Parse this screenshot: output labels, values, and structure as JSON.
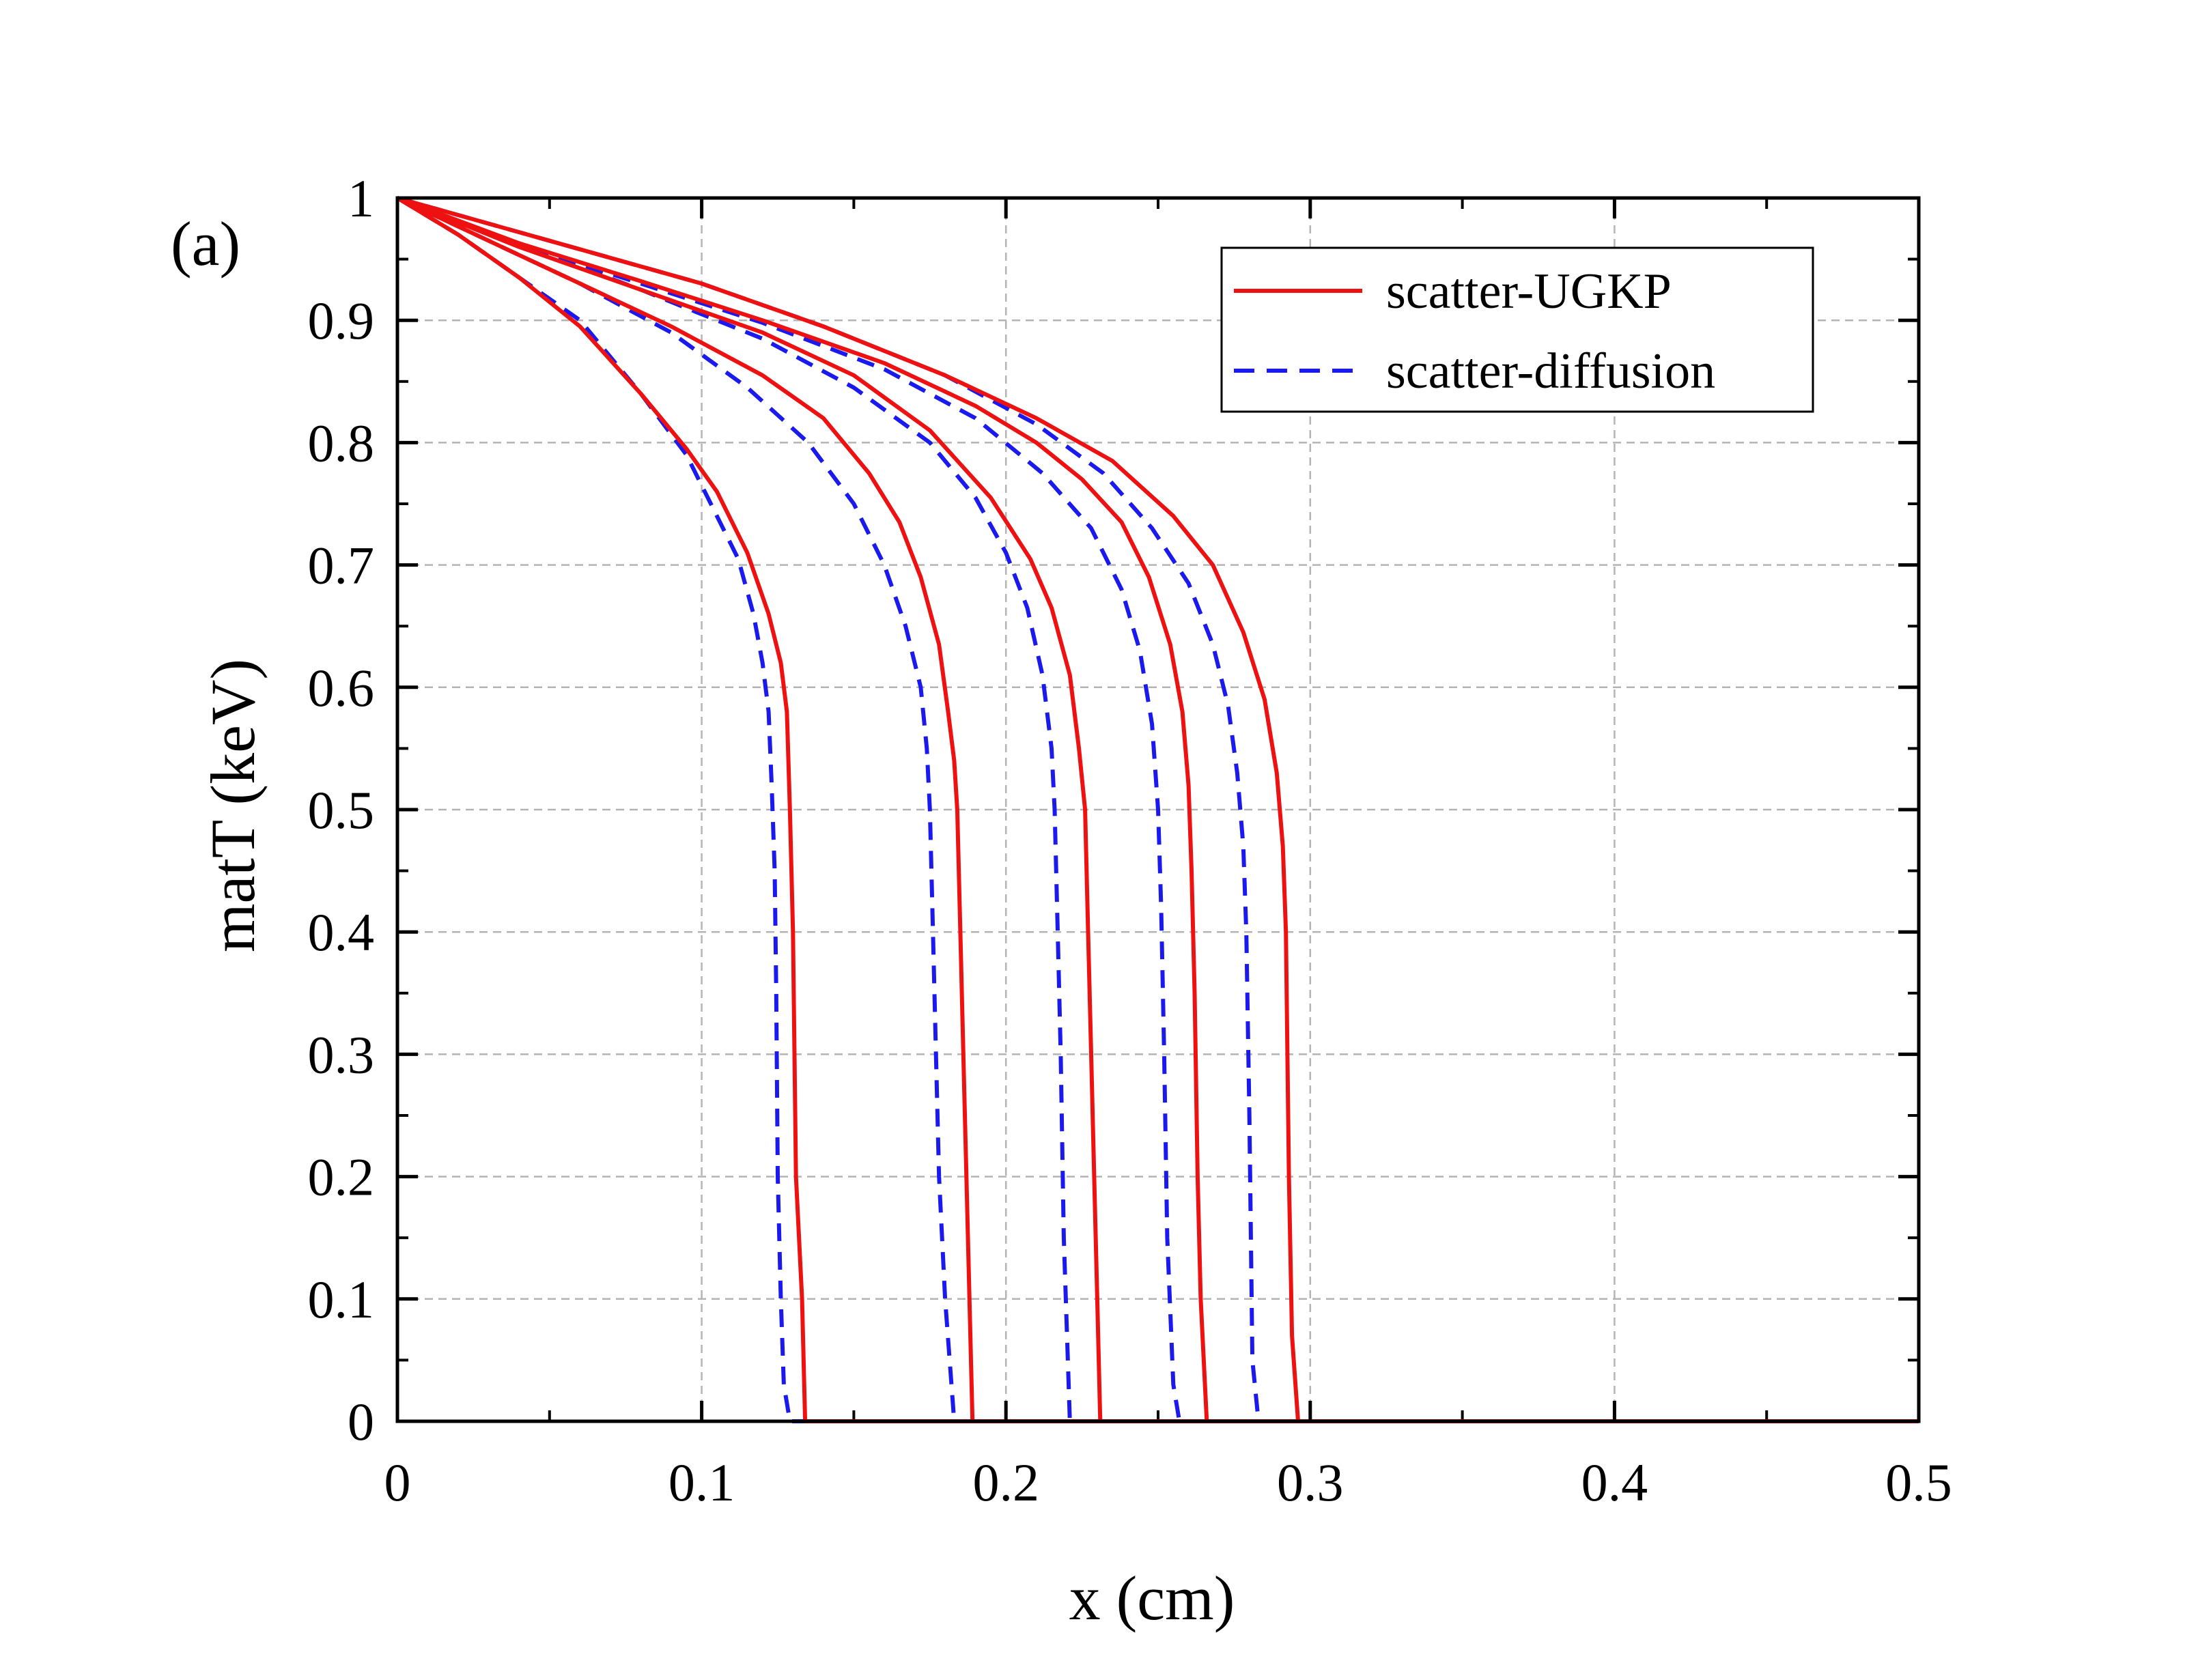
{
  "chart_data": {
    "type": "line",
    "panel_label": "(a)",
    "xlabel": "x (cm)",
    "ylabel": "matT (keV)",
    "xlim": [
      0,
      0.5
    ],
    "ylim": [
      0,
      1
    ],
    "x_ticks": [
      0,
      0.1,
      0.2,
      0.3,
      0.4,
      0.5
    ],
    "x_tick_labels": [
      "0",
      "0.1",
      "0.2",
      "0.3",
      "0.4",
      "0.5"
    ],
    "y_ticks": [
      0,
      0.1,
      0.2,
      0.3,
      0.4,
      0.5,
      0.6,
      0.7,
      0.8,
      0.9,
      1
    ],
    "y_tick_labels": [
      "0",
      "0.1",
      "0.2",
      "0.3",
      "0.4",
      "0.5",
      "0.6",
      "0.7",
      "0.8",
      "0.9",
      "1"
    ],
    "grid": true,
    "legend_position": "top-right",
    "legend": [
      {
        "label": "scatter-UGKP",
        "color": "#ee1111",
        "style": "solid"
      },
      {
        "label": "scatter-diffusion",
        "color": "#1a1aee",
        "style": "dashed"
      }
    ],
    "series": [
      {
        "name": "scatter-UGKP",
        "group": 0,
        "color": "#ee1111",
        "dash": false,
        "x": [
          0,
          0.02,
          0.04,
          0.06,
          0.08,
          0.095,
          0.105,
          0.115,
          0.122,
          0.126,
          0.128,
          0.129,
          0.13,
          0.1305,
          0.131,
          0.133,
          0.134,
          0.5
        ],
        "y": [
          1,
          0.97,
          0.935,
          0.895,
          0.84,
          0.795,
          0.76,
          0.71,
          0.66,
          0.62,
          0.58,
          0.5,
          0.4,
          0.3,
          0.2,
          0.1,
          0,
          0
        ]
      },
      {
        "name": "scatter-UGKP",
        "group": 1,
        "color": "#ee1111",
        "dash": false,
        "x": [
          0,
          0.03,
          0.06,
          0.09,
          0.12,
          0.14,
          0.155,
          0.165,
          0.172,
          0.178,
          0.181,
          0.183,
          0.184,
          0.185,
          0.186,
          0.187,
          0.189,
          0.5
        ],
        "y": [
          1,
          0.965,
          0.93,
          0.895,
          0.855,
          0.82,
          0.775,
          0.735,
          0.69,
          0.635,
          0.58,
          0.54,
          0.5,
          0.4,
          0.3,
          0.2,
          0,
          0
        ]
      },
      {
        "name": "scatter-UGKP",
        "group": 2,
        "color": "#ee1111",
        "dash": false,
        "x": [
          0,
          0.04,
          0.08,
          0.12,
          0.15,
          0.175,
          0.195,
          0.208,
          0.215,
          0.221,
          0.224,
          0.226,
          0.227,
          0.228,
          0.229,
          0.23,
          0.231,
          0.5
        ],
        "y": [
          1,
          0.96,
          0.925,
          0.89,
          0.855,
          0.81,
          0.755,
          0.705,
          0.665,
          0.61,
          0.55,
          0.5,
          0.4,
          0.3,
          0.2,
          0.1,
          0,
          0
        ]
      },
      {
        "name": "scatter-UGKP",
        "group": 3,
        "color": "#ee1111",
        "dash": false,
        "x": [
          0,
          0.04,
          0.08,
          0.12,
          0.16,
          0.19,
          0.21,
          0.225,
          0.238,
          0.247,
          0.254,
          0.258,
          0.26,
          0.261,
          0.262,
          0.263,
          0.264,
          0.266,
          0.5
        ],
        "y": [
          1,
          0.963,
          0.932,
          0.9,
          0.865,
          0.83,
          0.8,
          0.77,
          0.735,
          0.69,
          0.635,
          0.58,
          0.52,
          0.45,
          0.35,
          0.2,
          0.1,
          0,
          0
        ]
      },
      {
        "name": "scatter-UGKP",
        "group": 4,
        "color": "#ee1111",
        "dash": false,
        "x": [
          0,
          0.05,
          0.1,
          0.14,
          0.18,
          0.21,
          0.235,
          0.255,
          0.268,
          0.278,
          0.285,
          0.289,
          0.291,
          0.292,
          0.293,
          0.294,
          0.296,
          0.5
        ],
        "y": [
          1,
          0.965,
          0.93,
          0.895,
          0.855,
          0.82,
          0.785,
          0.74,
          0.7,
          0.645,
          0.59,
          0.53,
          0.47,
          0.4,
          0.2,
          0.07,
          0,
          0
        ]
      },
      {
        "name": "scatter-diffusion",
        "group": 0,
        "color": "#1a1aee",
        "dash": true,
        "x": [
          0,
          0.02,
          0.04,
          0.06,
          0.08,
          0.095,
          0.105,
          0.112,
          0.117,
          0.12,
          0.122,
          0.123,
          0.124,
          0.1245,
          0.125,
          0.126,
          0.127,
          0.129,
          0.5
        ],
        "y": [
          1,
          0.97,
          0.935,
          0.9,
          0.84,
          0.79,
          0.74,
          0.705,
          0.66,
          0.62,
          0.58,
          0.52,
          0.45,
          0.35,
          0.2,
          0.1,
          0.03,
          0,
          0
        ]
      },
      {
        "name": "scatter-diffusion",
        "group": 1,
        "color": "#1a1aee",
        "dash": true,
        "x": [
          0,
          0.03,
          0.06,
          0.09,
          0.115,
          0.135,
          0.15,
          0.16,
          0.167,
          0.172,
          0.174,
          0.175,
          0.176,
          0.177,
          0.178,
          0.18,
          0.183,
          0.5
        ],
        "y": [
          1,
          0.965,
          0.93,
          0.89,
          0.845,
          0.8,
          0.75,
          0.7,
          0.65,
          0.6,
          0.55,
          0.5,
          0.4,
          0.3,
          0.2,
          0.1,
          0,
          0
        ]
      },
      {
        "name": "scatter-diffusion",
        "group": 2,
        "color": "#1a1aee",
        "dash": true,
        "x": [
          0,
          0.04,
          0.08,
          0.12,
          0.15,
          0.175,
          0.19,
          0.2,
          0.207,
          0.212,
          0.215,
          0.216,
          0.217,
          0.218,
          0.219,
          0.221,
          0.5
        ],
        "y": [
          1,
          0.962,
          0.925,
          0.885,
          0.845,
          0.8,
          0.755,
          0.71,
          0.665,
          0.61,
          0.55,
          0.5,
          0.4,
          0.3,
          0.15,
          0,
          0
        ]
      },
      {
        "name": "scatter-diffusion",
        "group": 3,
        "color": "#1a1aee",
        "dash": true,
        "x": [
          0,
          0.04,
          0.08,
          0.12,
          0.16,
          0.19,
          0.212,
          0.228,
          0.238,
          0.244,
          0.248,
          0.25,
          0.251,
          0.252,
          0.253,
          0.255,
          0.257,
          0.5
        ],
        "y": [
          1,
          0.962,
          0.93,
          0.898,
          0.86,
          0.82,
          0.775,
          0.73,
          0.68,
          0.63,
          0.57,
          0.5,
          0.42,
          0.3,
          0.15,
          0.03,
          0,
          0
        ]
      },
      {
        "name": "scatter-diffusion",
        "group": 4,
        "color": "#1a1aee",
        "dash": true,
        "x": [
          0,
          0.05,
          0.1,
          0.14,
          0.18,
          0.21,
          0.232,
          0.248,
          0.26,
          0.268,
          0.273,
          0.276,
          0.278,
          0.279,
          0.28,
          0.281,
          0.283,
          0.5
        ],
        "y": [
          1,
          0.965,
          0.93,
          0.895,
          0.855,
          0.815,
          0.775,
          0.73,
          0.685,
          0.635,
          0.585,
          0.53,
          0.47,
          0.4,
          0.25,
          0.05,
          0,
          0
        ]
      }
    ]
  }
}
